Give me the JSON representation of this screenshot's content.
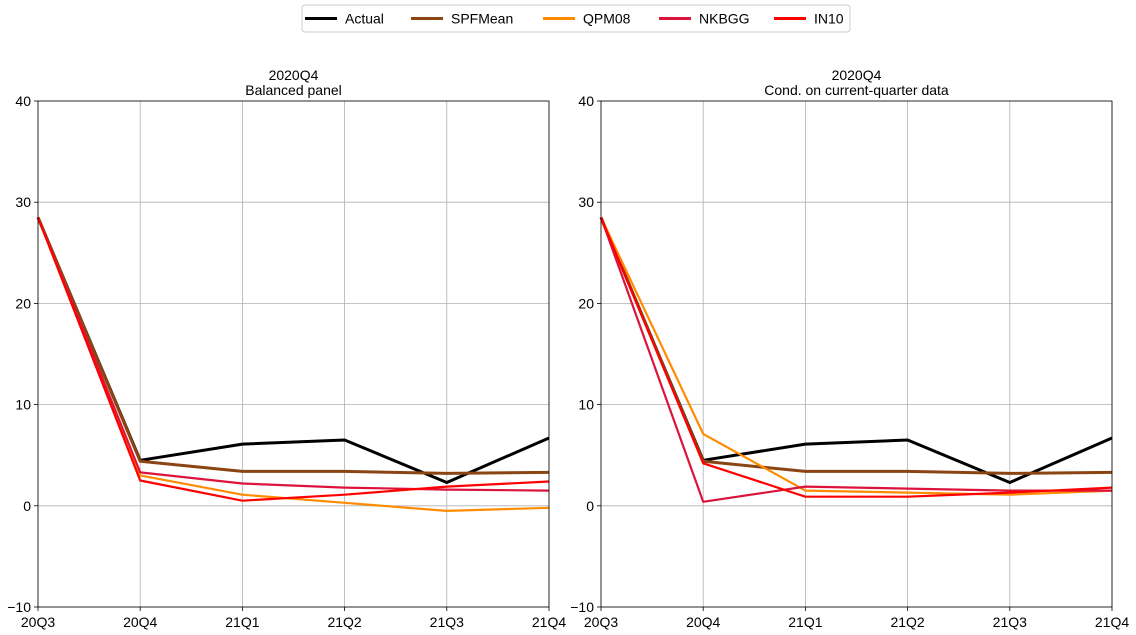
{
  "legend": {
    "items": [
      {
        "name": "Actual",
        "color": "#000000"
      },
      {
        "name": "SPFMean",
        "color": "#8B4513"
      },
      {
        "name": "QPM08",
        "color": "#FF8C00"
      },
      {
        "name": "NKBGG",
        "color": "#DC143C"
      },
      {
        "name": "IN10",
        "color": "#FF0000"
      }
    ]
  },
  "chart_data": [
    {
      "type": "line",
      "title": "2020Q4",
      "subtitle": "Balanced panel",
      "xlabel": "",
      "ylabel": "",
      "categories": [
        "20Q3",
        "20Q4",
        "21Q1",
        "21Q2",
        "21Q3",
        "21Q4"
      ],
      "ylim": [
        -10,
        40
      ],
      "yticks": [
        -10,
        0,
        10,
        20,
        30,
        40
      ],
      "grid": true,
      "series": [
        {
          "name": "Actual",
          "color": "#000000",
          "values": [
            28.5,
            4.5,
            6.1,
            6.5,
            2.3,
            6.7
          ]
        },
        {
          "name": "SPFMean",
          "color": "#8B4513",
          "values": [
            28.5,
            4.4,
            3.4,
            3.4,
            3.2,
            3.3
          ]
        },
        {
          "name": "QPM08",
          "color": "#FF8C00",
          "values": [
            28.5,
            3.0,
            1.1,
            0.3,
            -0.5,
            -0.2
          ]
        },
        {
          "name": "NKBGG",
          "color": "#DC143C",
          "values": [
            28.5,
            3.3,
            2.2,
            1.8,
            1.6,
            1.5
          ]
        },
        {
          "name": "IN10",
          "color": "#FF0000",
          "values": [
            28.5,
            2.5,
            0.5,
            1.1,
            1.9,
            2.4
          ]
        }
      ]
    },
    {
      "type": "line",
      "title": "2020Q4",
      "subtitle": "Cond. on current-quarter data",
      "xlabel": "",
      "ylabel": "",
      "categories": [
        "20Q3",
        "20Q4",
        "21Q1",
        "21Q2",
        "21Q3",
        "21Q4"
      ],
      "ylim": [
        -10,
        40
      ],
      "yticks": [
        -10,
        0,
        10,
        20,
        30,
        40
      ],
      "grid": true,
      "series": [
        {
          "name": "Actual",
          "color": "#000000",
          "values": [
            28.5,
            4.5,
            6.1,
            6.5,
            2.3,
            6.7
          ]
        },
        {
          "name": "SPFMean",
          "color": "#8B4513",
          "values": [
            28.5,
            4.4,
            3.4,
            3.4,
            3.2,
            3.3
          ]
        },
        {
          "name": "QPM08",
          "color": "#FF8C00",
          "values": [
            28.5,
            7.1,
            1.5,
            1.3,
            1.1,
            1.5
          ]
        },
        {
          "name": "NKBGG",
          "color": "#DC143C",
          "values": [
            28.5,
            0.4,
            1.9,
            1.7,
            1.5,
            1.5
          ]
        },
        {
          "name": "IN10",
          "color": "#FF0000",
          "values": [
            28.5,
            4.2,
            0.9,
            0.9,
            1.3,
            1.8
          ]
        }
      ]
    }
  ]
}
